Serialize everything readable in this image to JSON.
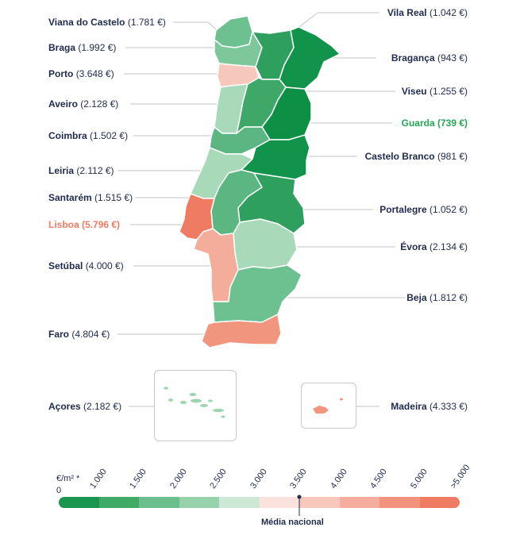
{
  "regions": [
    {
      "id": "viana",
      "name": "Viana do Castelo",
      "value": "(1.781 €)",
      "fill": "#6dc08f"
    },
    {
      "id": "braga",
      "name": "Braga",
      "value": "(1.992 €)",
      "fill": "#7ec79b"
    },
    {
      "id": "porto",
      "name": "Porto",
      "value": "(3.648 €)",
      "fill": "#f6c7bb"
    },
    {
      "id": "aveiro",
      "name": "Aveiro",
      "value": "(2.128 €)",
      "fill": "#a8d9b9"
    },
    {
      "id": "coimbra",
      "name": "Coimbra",
      "value": "(1.502 €)",
      "fill": "#5bb682"
    },
    {
      "id": "leiria",
      "name": "Leiria",
      "value": "(2.112 €)",
      "fill": "#a8d9b9"
    },
    {
      "id": "santarem",
      "name": "Santarém",
      "value": "(1.515 €)",
      "fill": "#5bb682"
    },
    {
      "id": "lisboa",
      "name": "Lisboa",
      "value": "(5.796 €)",
      "fill": "#ef7b62"
    },
    {
      "id": "setubal",
      "name": "Setúbal",
      "value": "(4.000 €)",
      "fill": "#f3ad9a"
    },
    {
      "id": "faro",
      "name": "Faro",
      "value": "(4.804 €)",
      "fill": "#f1957f"
    },
    {
      "id": "acores",
      "name": "Açores",
      "value": "(2.182 €)",
      "fill": "#9fd4b2"
    },
    {
      "id": "vilareal",
      "name": "Vila Real",
      "value": "(1.042 €)",
      "fill": "#2f9f5e"
    },
    {
      "id": "braganca",
      "name": "Bragança",
      "value": "(943 €)",
      "fill": "#12934b"
    },
    {
      "id": "viseu",
      "name": "Viseu",
      "value": "(1.255 €)",
      "fill": "#3fa868"
    },
    {
      "id": "guarda",
      "name": "Guarda",
      "value": "(739 €)",
      "fill": "#0e8f46"
    },
    {
      "id": "castelobranco",
      "name": "Castelo Branco",
      "value": "(981 €)",
      "fill": "#12934b"
    },
    {
      "id": "portalegre",
      "name": "Portalegre",
      "value": "(1.052 €)",
      "fill": "#2f9f5e"
    },
    {
      "id": "evora",
      "name": "Évora",
      "value": "(2.134 €)",
      "fill": "#a8d9b9"
    },
    {
      "id": "beja",
      "name": "Beja",
      "value": "(1.812 €)",
      "fill": "#6dc08f"
    },
    {
      "id": "madeira",
      "name": "Madeira",
      "value": "(4.333 €)",
      "fill": "#f1957f"
    }
  ],
  "legend": {
    "unit": "€/m² *",
    "zero": "0",
    "ticks": [
      "1.000",
      "1.500",
      "2.000",
      "2.500",
      "3.000",
      "3.500",
      "4.000",
      "4.500",
      "5.000",
      ">5.000"
    ],
    "colors": [
      "#1a9650",
      "#3fab67",
      "#6bbf8d",
      "#98d2ad",
      "#cde9d6",
      "#fbe2dc",
      "#f8c8bc",
      "#f5ae9d",
      "#f2937d",
      "#ef7b62"
    ],
    "national_label": "Média nacional",
    "national_value": 3.5
  }
}
